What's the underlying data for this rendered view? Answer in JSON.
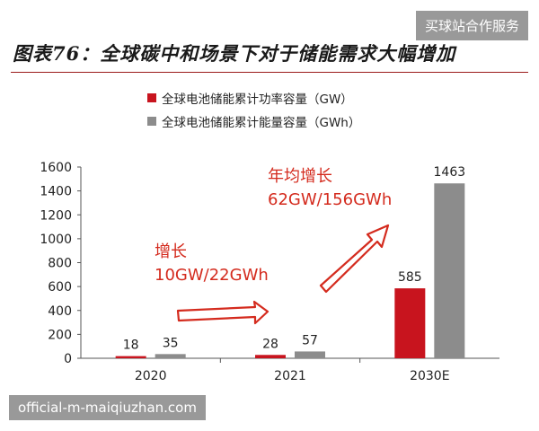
{
  "title": "图表76：全球碳中和场景下对于储能需求大幅增加",
  "watermark_top": "买球站合作服务",
  "watermark_bottom": "official-m-maiqiuzhan.com",
  "annotations": {
    "growth_2021": [
      "增长",
      "10GW/22GWh"
    ],
    "growth_2030": [
      "年均增长",
      "62GW/156GWh"
    ]
  },
  "colors": {
    "power": "#c8141e",
    "energy": "#8c8c8c",
    "accent": "#d42b1e",
    "title_rule": "#9b1b1b"
  },
  "chart_data": {
    "type": "bar",
    "categories": [
      "2020",
      "2021",
      "2030E"
    ],
    "series": [
      {
        "name": "全球电池储能累计功率容量（GW）",
        "values": [
          18,
          28,
          585
        ],
        "color": "#c8141e"
      },
      {
        "name": "全球电池储能累计能量容量（GWh）",
        "values": [
          35,
          57,
          1463
        ],
        "color": "#8c8c8c"
      }
    ],
    "ylim": [
      0,
      1600
    ],
    "yticks": [
      0,
      200,
      400,
      600,
      800,
      1000,
      1200,
      1400,
      1600
    ],
    "legend_position": "top",
    "grid": false
  }
}
